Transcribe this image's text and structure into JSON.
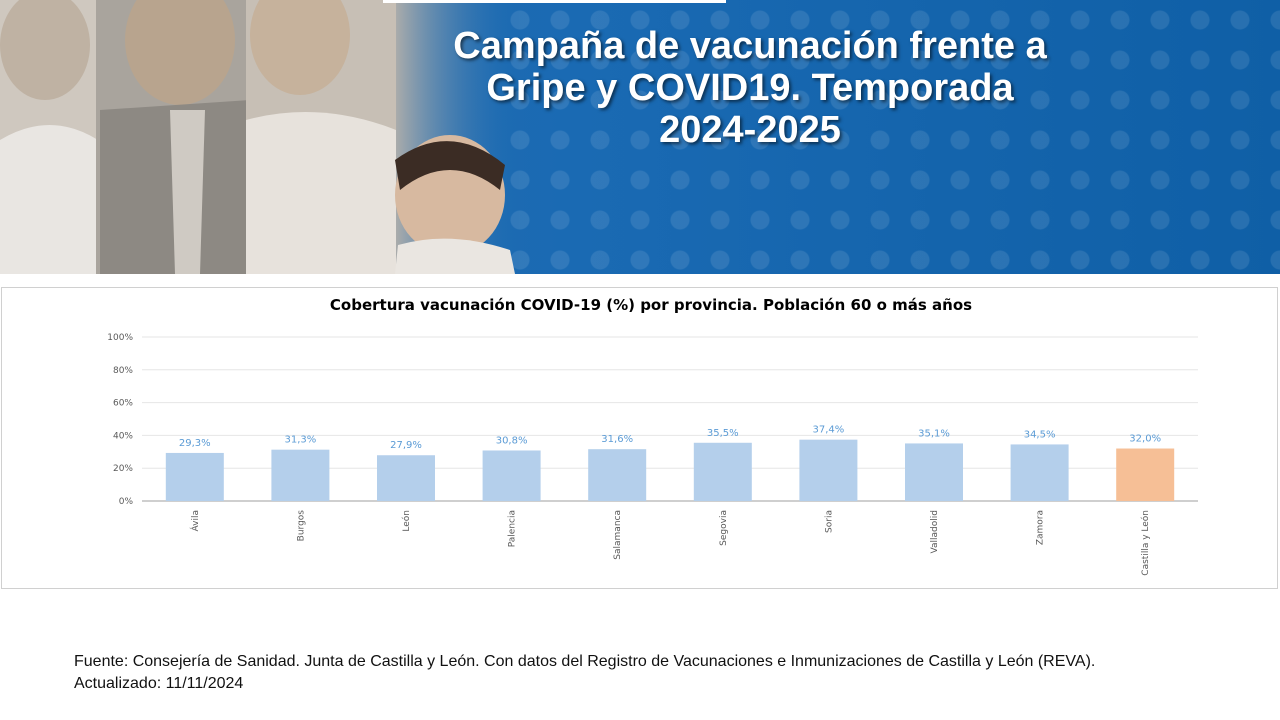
{
  "banner": {
    "title": "Campaña de vacunación frente a\nGripe y COVID19. Temporada\n2024-2025"
  },
  "footer": {
    "source": "Fuente: Consejería de Sanidad. Junta de Castilla y León. Con datos del Registro de Vacunaciones e Inmunizaciones  de Castilla y León (REVA).",
    "updated": "Actualizado: 11/11/2024"
  },
  "colors": {
    "banner_blue": "#1a6ab3",
    "bar_province": "#b4cfeb",
    "bar_total": "#f6bf96",
    "data_label": "#5b9bd5"
  },
  "chart_data": {
    "type": "bar",
    "title": "Cobertura vacunación COVID-19  (%) por provincia. Población 60 o más años",
    "categories": [
      "Ávila",
      "Burgos",
      "León",
      "Palencia",
      "Salamanca",
      "Segovia",
      "Soria",
      "Valladolid",
      "Zamora",
      "Castilla y León"
    ],
    "values": [
      29.3,
      31.3,
      27.9,
      30.8,
      31.6,
      35.5,
      37.4,
      35.1,
      34.5,
      32.0
    ],
    "value_labels": [
      "29,3%",
      "31,3%",
      "27,9%",
      "30,8%",
      "31,6%",
      "35,5%",
      "37,4%",
      "35,1%",
      "34,5%",
      "32,0%"
    ],
    "y_ticks": [
      0,
      20,
      40,
      60,
      80,
      100
    ],
    "y_tick_labels": [
      "0%",
      "20%",
      "40%",
      "60%",
      "80%",
      "100%"
    ],
    "ylim": [
      0,
      100
    ],
    "highlight_category": "Castilla y León",
    "grid": true,
    "legend": "none"
  }
}
